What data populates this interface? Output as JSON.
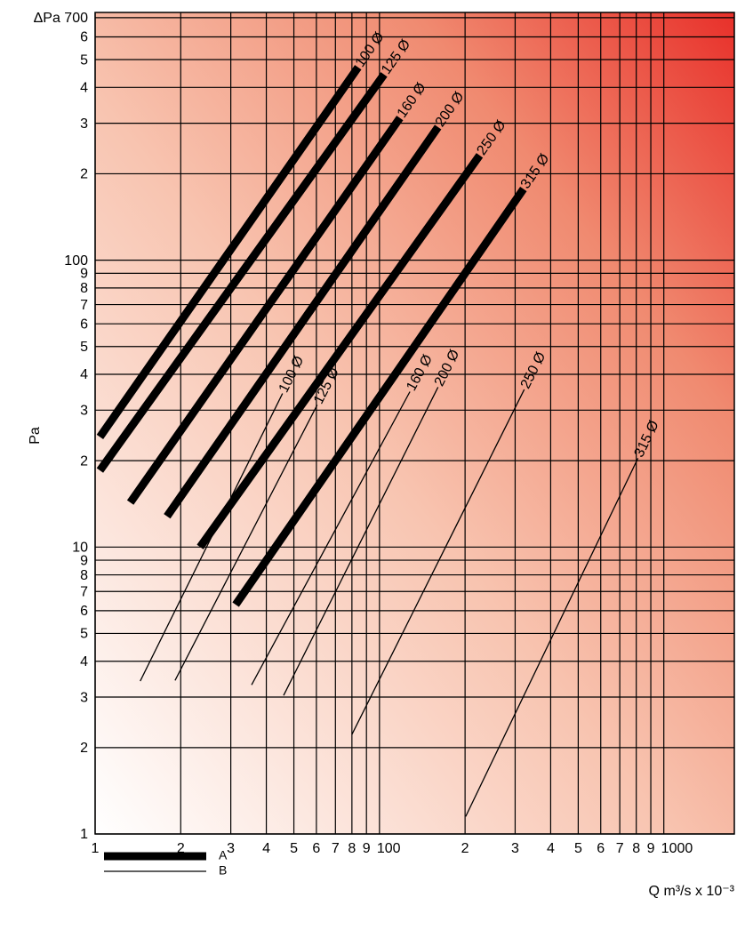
{
  "chart_data": {
    "type": "line",
    "log_x": true,
    "log_y": true,
    "grid": true,
    "y_label": "Pa",
    "x_label": "Q m³/s x 10⁻³",
    "xlim": [
      10,
      1770
    ],
    "ylim": [
      1,
      730
    ],
    "xticks": [
      {
        "value": 10,
        "label": "1"
      },
      {
        "value": 20,
        "label": "2"
      },
      {
        "value": 30,
        "label": "3"
      },
      {
        "value": 40,
        "label": "4"
      },
      {
        "value": 50,
        "label": "5"
      },
      {
        "value": 60,
        "label": "6"
      },
      {
        "value": 70,
        "label": "7"
      },
      {
        "value": 80,
        "label": "8"
      },
      {
        "value": 90,
        "label": "9"
      },
      100,
      {
        "value": 200,
        "label": "2"
      },
      {
        "value": 300,
        "label": "3"
      },
      {
        "value": 400,
        "label": "4"
      },
      {
        "value": 500,
        "label": "5"
      },
      {
        "value": 600,
        "label": "6"
      },
      {
        "value": 700,
        "label": "7"
      },
      {
        "value": 800,
        "label": "8"
      },
      {
        "value": 900,
        "label": "9"
      },
      1000
    ],
    "yticks": [
      1,
      2,
      3,
      4,
      5,
      6,
      7,
      8,
      9,
      10,
      {
        "value": 20,
        "label": "2"
      },
      {
        "value": 30,
        "label": "3"
      },
      {
        "value": 40,
        "label": "4"
      },
      {
        "value": 50,
        "label": "5"
      },
      {
        "value": 60,
        "label": "6"
      },
      {
        "value": 70,
        "label": "7"
      },
      {
        "value": 80,
        "label": "8"
      },
      {
        "value": 90,
        "label": "9"
      },
      100,
      {
        "value": 200,
        "label": "2"
      },
      {
        "value": 300,
        "label": "3"
      },
      {
        "value": 400,
        "label": "4"
      },
      {
        "value": 500,
        "label": "5"
      },
      {
        "value": 600,
        "label": "6"
      },
      {
        "value": 700,
        "label": "ΔPa 700"
      }
    ],
    "series": [
      {
        "name": "A",
        "color": "#000000",
        "lines": [
          {
            "label": "100 Ø",
            "x": [
              10.4,
              84.1
            ],
            "values": [
              24.2,
              470
            ]
          },
          {
            "label": "125 Ø",
            "x": [
              10.4,
              103.8
            ],
            "values": [
              18.5,
              444
            ]
          },
          {
            "label": "160 Ø",
            "x": [
              13.3,
              118
            ],
            "values": [
              14.3,
              313
            ]
          },
          {
            "label": "200 Ø",
            "x": [
              17.9,
              160.7
            ],
            "values": [
              12.8,
              291
            ]
          },
          {
            "label": "250 Ø",
            "x": [
              23.4,
              225
            ],
            "values": [
              10.0,
              232
            ]
          },
          {
            "label": "315 Ø",
            "x": [
              31.2,
              321
            ],
            "values": [
              6.3,
              177
            ]
          }
        ]
      },
      {
        "name": "B",
        "color": "#000000",
        "lines": [
          {
            "label": "100 Ø",
            "x": [
              14.4,
              45.6
            ],
            "values": [
              3.41,
              34.3
            ]
          },
          {
            "label": "125 Ø",
            "x": [
              19.1,
              60.4
            ],
            "values": [
              3.43,
              31.3
            ]
          },
          {
            "label": "160 Ø",
            "x": [
              35.5,
              128
            ],
            "values": [
              3.31,
              34.8
            ]
          },
          {
            "label": "200 Ø",
            "x": [
              46,
              160.7
            ],
            "values": [
              3.04,
              36.1
            ]
          },
          {
            "label": "250 Ø",
            "x": [
              80,
              323
            ],
            "values": [
              2.22,
              35.4
            ]
          },
          {
            "label": "315 Ø",
            "x": [
              201,
              811
            ],
            "values": [
              1.15,
              20.4
            ]
          }
        ]
      }
    ]
  }
}
